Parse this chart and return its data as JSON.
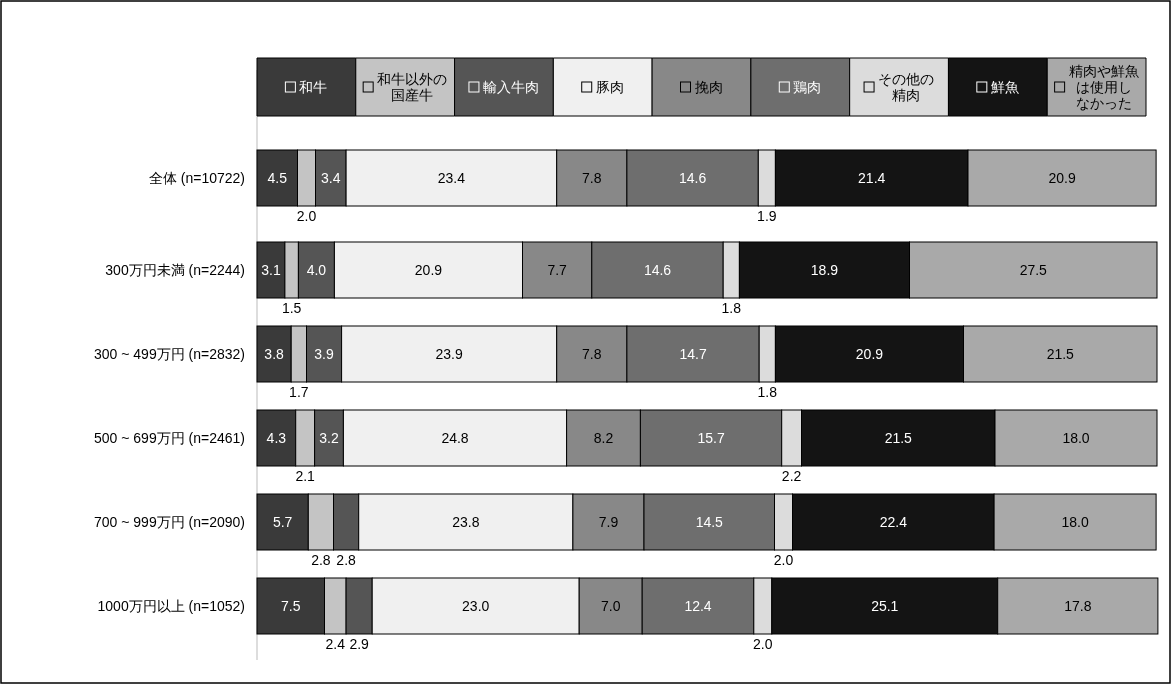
{
  "chart_data": {
    "type": "bar",
    "orientation": "horizontal",
    "stacked": true,
    "legend": "top",
    "tick_labels": "y",
    "xlim": [
      0,
      100
    ],
    "categories": [
      "全体 (n=10722)",
      "300万円未満 (n=2244)",
      "300 ~ 499万円 (n=2832)",
      "500 ~ 699万円 (n=2461)",
      "700 ~ 999万円 (n=2090)",
      "1000万円以上 (n=1052)"
    ],
    "series": [
      {
        "name": "和牛",
        "color": "#3a3a3a",
        "values": [
          4.5,
          3.1,
          3.8,
          4.3,
          5.7,
          7.5
        ],
        "value_labels": [
          "4.5",
          "3.1",
          "3.8",
          "4.3",
          "5.7",
          "7.5"
        ]
      },
      {
        "name": "和牛以外の国産牛",
        "color": "#c4c4c4",
        "values": [
          2.0,
          1.5,
          1.7,
          2.1,
          2.8,
          2.4
        ],
        "value_labels": [
          "2.0",
          "1.5",
          "1.7",
          "2.1",
          "2.8",
          "2.4"
        ]
      },
      {
        "name": "輸入牛肉",
        "color": "#555555",
        "values": [
          3.4,
          4.0,
          3.9,
          3.2,
          2.8,
          2.9
        ],
        "value_labels": [
          "3.4",
          "4.0",
          "3.9",
          "3.2",
          "2.8",
          "2.9"
        ]
      },
      {
        "name": "豚肉",
        "color": "#f0f0f0",
        "values": [
          23.4,
          20.9,
          23.9,
          24.8,
          23.8,
          23.0
        ],
        "value_labels": [
          "23.4",
          "20.9",
          "23.9",
          "24.8",
          "23.8",
          "23.0"
        ]
      },
      {
        "name": "挽肉",
        "color": "#888888",
        "values": [
          7.8,
          7.7,
          7.8,
          8.2,
          7.9,
          7.0
        ],
        "value_labels": [
          "7.8",
          "7.7",
          "7.8",
          "8.2",
          "7.9",
          "7.0"
        ]
      },
      {
        "name": "鶏肉",
        "color": "#6e6e6e",
        "values": [
          14.6,
          14.6,
          14.7,
          15.7,
          14.5,
          12.4
        ],
        "value_labels": [
          "14.6",
          "14.6",
          "14.7",
          "15.7",
          "14.5",
          "12.4"
        ]
      },
      {
        "name": "その他の精肉",
        "color": "#dcdcdc",
        "values": [
          1.9,
          1.8,
          1.8,
          2.2,
          2.0,
          2.0
        ],
        "value_labels": [
          "1.9",
          "1.8",
          "1.8",
          "2.2",
          "2.0",
          "2.0"
        ]
      },
      {
        "name": "鮮魚",
        "color": "#141414",
        "values": [
          21.4,
          18.9,
          20.9,
          21.5,
          22.4,
          25.1
        ],
        "value_labels": [
          "21.4",
          "18.9",
          "20.9",
          "21.5",
          "22.4",
          "25.1"
        ]
      },
      {
        "name": "精肉や鮮魚は使用しなかった",
        "color": "#a9a9a9",
        "values": [
          20.9,
          27.5,
          21.5,
          18.0,
          18.0,
          17.8
        ],
        "value_labels": [
          "20.9",
          "27.5",
          "21.5",
          "18.0",
          "18.0",
          "17.8"
        ]
      }
    ]
  }
}
